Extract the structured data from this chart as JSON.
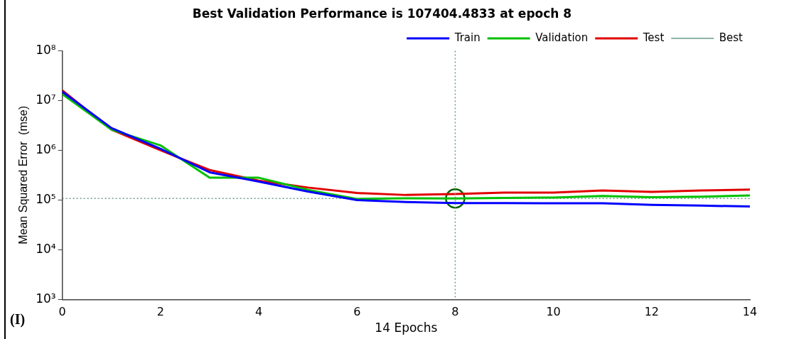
{
  "chart_data": {
    "type": "line",
    "title": "Best Validation Performance is 107404.4833 at epoch 8",
    "xlabel": "14 Epochs",
    "ylabel": "Mean Squared Error  (mse)",
    "x": [
      0,
      1,
      2,
      3,
      4,
      5,
      6,
      7,
      8,
      9,
      10,
      11,
      12,
      13,
      14
    ],
    "log": "y",
    "xlim": [
      0,
      14
    ],
    "xticks": [
      0,
      2,
      4,
      6,
      8,
      10,
      12,
      14
    ],
    "ylim": [
      1000,
      100000000
    ],
    "yticks": [
      {
        "value": 1000,
        "label": "10³"
      },
      {
        "value": 10000,
        "label": "10⁴"
      },
      {
        "value": 100000,
        "label": "10⁵"
      },
      {
        "value": 1000000,
        "label": "10⁶"
      },
      {
        "value": 10000000,
        "label": "10⁷"
      },
      {
        "value": 100000000,
        "label": "10⁸"
      }
    ],
    "grid": false,
    "legend": "top right",
    "line_style": "solid",
    "series": [
      {
        "name": "Train",
        "color": "#0000ff",
        "values": [
          15000000,
          2800000,
          1070000,
          360000,
          235000,
          148000,
          100000,
          91000,
          87000,
          87000,
          86000,
          86000,
          80000,
          77000,
          74000
        ]
      },
      {
        "name": "Validation",
        "color": "#00c000",
        "values": [
          13500000,
          2600000,
          1250000,
          280000,
          280000,
          160000,
          105000,
          108000,
          107404.4833,
          110000,
          112000,
          120000,
          114000,
          117000,
          123000
        ]
      },
      {
        "name": "Test",
        "color": "#e00000",
        "values": [
          16000000,
          2600000,
          1000000,
          400000,
          245000,
          178000,
          138000,
          126000,
          132000,
          141000,
          141000,
          155000,
          145000,
          155000,
          162000
        ]
      },
      {
        "name": "Best",
        "color": "#6a9a88",
        "line_style": "dotted",
        "x": [
          0,
          14
        ],
        "values": [
          107404.4833,
          107404.4833
        ]
      },
      {
        "type": "scatter",
        "color": "#006400",
        "marker": "circle",
        "x": [
          8
        ],
        "values": [
          107404.4833
        ]
      }
    ],
    "ref_lines": [
      {
        "axis": "x",
        "value": 8,
        "color": "#6a9a88",
        "line_style": "dotted"
      }
    ],
    "annotations": [
      "(I)"
    ]
  }
}
